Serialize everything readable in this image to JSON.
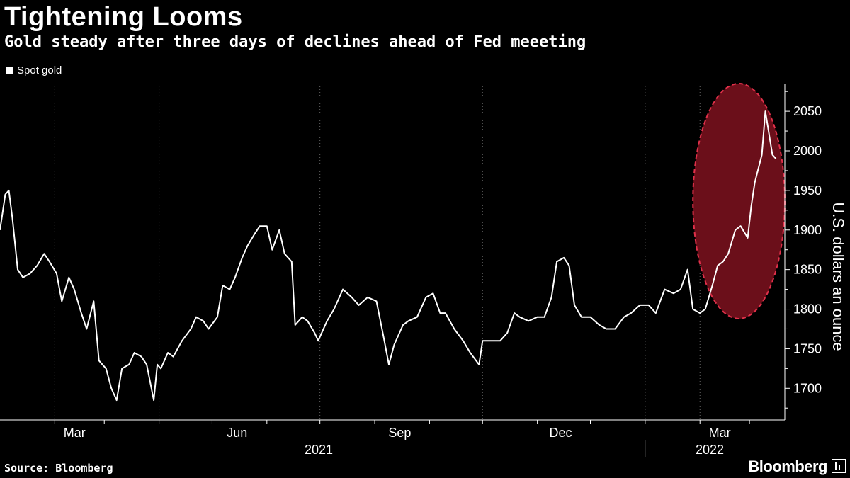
{
  "header": {
    "title": "Tightening Looms",
    "subtitle": "Gold steady after three days of declines ahead of Fed meeeting"
  },
  "footer": {
    "source": "Source: Bloomberg",
    "brand": "Bloomberg"
  },
  "colors": {
    "background": "#000000",
    "line": "#ffffff",
    "highlight_fill": "#6b0f1a",
    "highlight_border": "#e0304a",
    "grid": "#666666"
  },
  "chart_data": {
    "type": "line",
    "title": "Tightening Looms",
    "subtitle": "Gold steady after three days of declines ahead of Fed meeeting",
    "xlabel": "",
    "ylabel": "U.S. dollars an ounce",
    "ylim": [
      1660,
      2085
    ],
    "yticks": [
      1700,
      1750,
      1800,
      1850,
      1900,
      1950,
      2000,
      2050
    ],
    "xlim": [
      "2021-01-01",
      "2022-03-21"
    ],
    "xticks": [
      {
        "label": "Mar",
        "date": "2021-03-01"
      },
      {
        "label": "Jun",
        "date": "2021-06-01"
      },
      {
        "label": "Sep",
        "date": "2021-09-01"
      },
      {
        "label": "Dec",
        "date": "2021-12-01"
      },
      {
        "label": "Mar",
        "date": "2022-03-01"
      }
    ],
    "year_labels": [
      {
        "label": "2021",
        "date": "2021-01-01"
      },
      {
        "label": "2022",
        "date": "2022-01-01"
      }
    ],
    "grid": "vertical dotted",
    "legend_position": "top-left",
    "highlight": {
      "shape": "ellipse",
      "x_range": [
        "2022-01-28",
        "2022-03-21"
      ],
      "y_range": [
        1788,
        2085
      ]
    },
    "series": [
      {
        "name": "Spot gold",
        "x": [
          "2021-01-01",
          "2021-01-04",
          "2021-01-06",
          "2021-01-08",
          "2021-01-11",
          "2021-01-14",
          "2021-01-18",
          "2021-01-22",
          "2021-01-26",
          "2021-01-29",
          "2021-02-02",
          "2021-02-05",
          "2021-02-09",
          "2021-02-12",
          "2021-02-16",
          "2021-02-19",
          "2021-02-23",
          "2021-02-26",
          "2021-03-02",
          "2021-03-05",
          "2021-03-08",
          "2021-03-11",
          "2021-03-15",
          "2021-03-18",
          "2021-03-22",
          "2021-03-25",
          "2021-03-29",
          "2021-03-31",
          "2021-04-02",
          "2021-04-06",
          "2021-04-09",
          "2021-04-14",
          "2021-04-19",
          "2021-04-22",
          "2021-04-26",
          "2021-04-29",
          "2021-05-04",
          "2021-05-07",
          "2021-05-11",
          "2021-05-14",
          "2021-05-18",
          "2021-05-21",
          "2021-05-25",
          "2021-05-28",
          "2021-06-01",
          "2021-06-04",
          "2021-06-08",
          "2021-06-11",
          "2021-06-15",
          "2021-06-17",
          "2021-06-21",
          "2021-06-24",
          "2021-06-28",
          "2021-06-30",
          "2021-07-05",
          "2021-07-09",
          "2021-07-14",
          "2021-07-19",
          "2021-07-23",
          "2021-07-28",
          "2021-08-02",
          "2021-08-06",
          "2021-08-09",
          "2021-08-12",
          "2021-08-17",
          "2021-08-20",
          "2021-08-25",
          "2021-08-30",
          "2021-09-03",
          "2021-09-07",
          "2021-09-10",
          "2021-09-15",
          "2021-09-20",
          "2021-09-24",
          "2021-09-29",
          "2021-10-01",
          "2021-10-06",
          "2021-10-11",
          "2021-10-15",
          "2021-10-19",
          "2021-10-22",
          "2021-10-27",
          "2021-11-01",
          "2021-11-05",
          "2021-11-09",
          "2021-11-12",
          "2021-11-16",
          "2021-11-19",
          "2021-11-22",
          "2021-11-26",
          "2021-12-01",
          "2021-12-06",
          "2021-12-10",
          "2021-12-15",
          "2021-12-20",
          "2021-12-24",
          "2021-12-29",
          "2022-01-03",
          "2022-01-07",
          "2022-01-12",
          "2022-01-17",
          "2022-01-21",
          "2022-01-25",
          "2022-01-28",
          "2022-02-01",
          "2022-02-04",
          "2022-02-08",
          "2022-02-11",
          "2022-02-14",
          "2022-02-17",
          "2022-02-21",
          "2022-02-24",
          "2022-02-28",
          "2022-03-02",
          "2022-03-04",
          "2022-03-08",
          "2022-03-10",
          "2022-03-14",
          "2022-03-16"
        ],
        "values": [
          1900,
          1945,
          1950,
          1915,
          1850,
          1840,
          1845,
          1855,
          1870,
          1860,
          1845,
          1810,
          1840,
          1825,
          1795,
          1775,
          1810,
          1735,
          1725,
          1700,
          1685,
          1725,
          1730,
          1745,
          1740,
          1730,
          1685,
          1730,
          1725,
          1745,
          1740,
          1760,
          1775,
          1790,
          1785,
          1775,
          1790,
          1830,
          1825,
          1840,
          1865,
          1880,
          1895,
          1905,
          1905,
          1875,
          1900,
          1870,
          1860,
          1780,
          1790,
          1785,
          1770,
          1760,
          1785,
          1800,
          1825,
          1815,
          1805,
          1815,
          1810,
          1765,
          1730,
          1755,
          1780,
          1785,
          1790,
          1815,
          1820,
          1795,
          1795,
          1775,
          1760,
          1745,
          1730,
          1760,
          1760,
          1760,
          1770,
          1795,
          1790,
          1785,
          1790,
          1790,
          1815,
          1860,
          1865,
          1855,
          1805,
          1790,
          1790,
          1780,
          1775,
          1775,
          1790,
          1795,
          1805,
          1805,
          1795,
          1825,
          1820,
          1825,
          1850,
          1800,
          1795,
          1800,
          1830,
          1855,
          1860,
          1870,
          1900,
          1905,
          1890,
          1930,
          1960,
          1995,
          2050,
          1995,
          1990
        ]
      }
    ]
  }
}
